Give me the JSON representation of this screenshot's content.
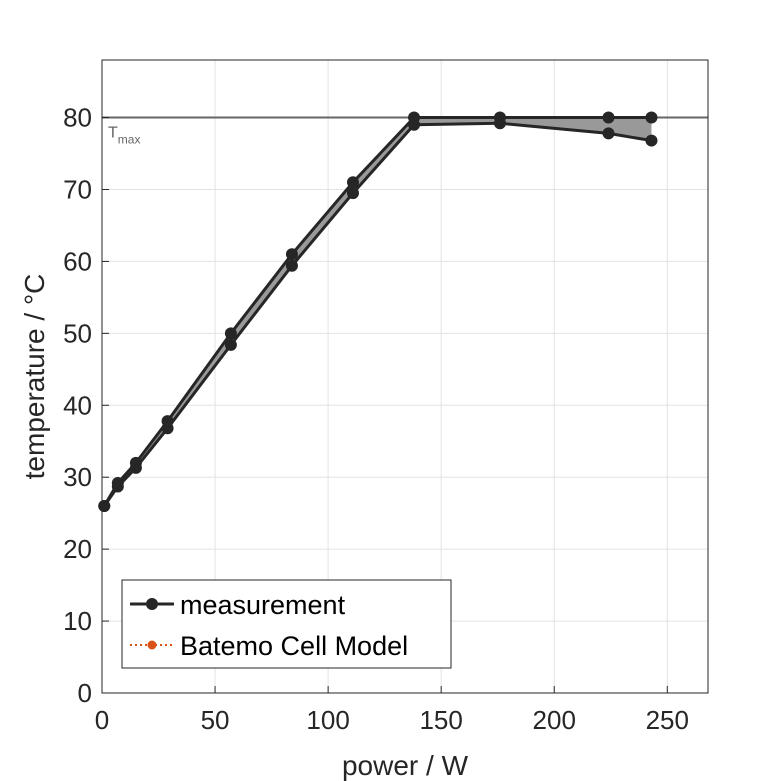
{
  "chart_data": {
    "type": "line",
    "xlabel": "power / W",
    "ylabel": "temperature / °C",
    "xlim": [
      0,
      268
    ],
    "ylim": [
      0,
      88
    ],
    "xticks": [
      0,
      50,
      100,
      150,
      200,
      250
    ],
    "yticks": [
      0,
      10,
      20,
      30,
      40,
      50,
      60,
      70,
      80
    ],
    "grid": true,
    "legend_position": "bottom-left",
    "series": [
      {
        "name": "measurement",
        "color": "#262626",
        "marker": "circle",
        "band_fill": "#999999",
        "upper": {
          "x": [
            1,
            7,
            15,
            29,
            57,
            84,
            111,
            138,
            176,
            224,
            243
          ],
          "y": [
            26,
            29.2,
            32,
            37.8,
            50,
            61,
            71,
            80,
            80,
            80,
            80
          ]
        },
        "lower": {
          "x": [
            1,
            7,
            15,
            29,
            57,
            84,
            111,
            138,
            176,
            224,
            243
          ],
          "y": [
            26,
            28.7,
            31.3,
            36.8,
            48.4,
            59.4,
            69.5,
            79,
            79.2,
            77.8,
            76.8
          ]
        }
      },
      {
        "name": "Batemo Cell Model",
        "color": "#D95319",
        "marker": "circle",
        "line_style": "dotted",
        "x": [],
        "y": []
      }
    ],
    "reference_line": {
      "y": 80,
      "color": "#666666",
      "label_main": "T",
      "label_sub": "max"
    }
  }
}
